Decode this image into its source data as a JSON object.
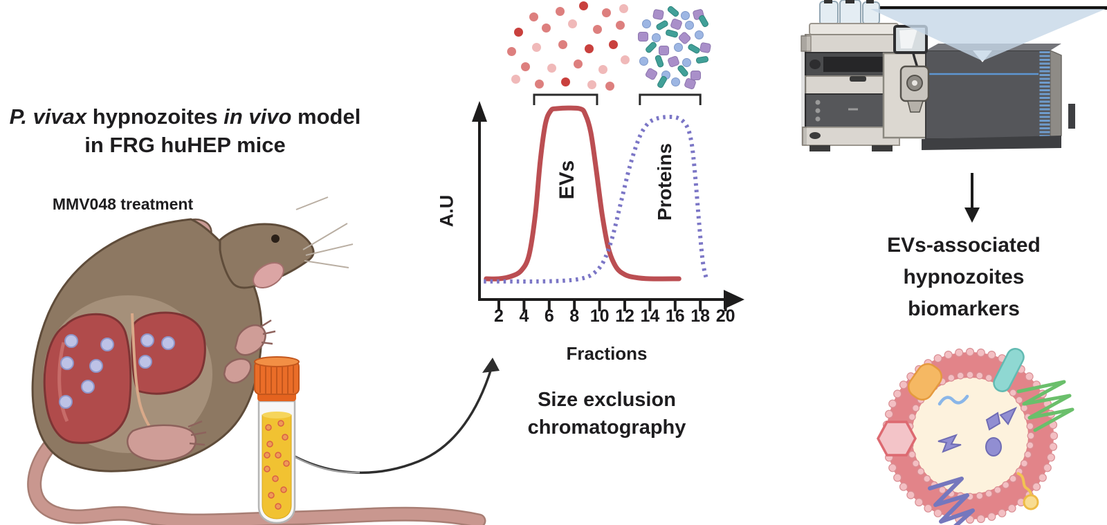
{
  "left": {
    "title_parts": [
      {
        "text": "P. vivax",
        "italic": true
      },
      {
        "text": " hypnozoites ",
        "italic": false
      },
      {
        "text": "in vivo",
        "italic": true
      },
      {
        "text": " model",
        "italic": false
      }
    ],
    "title_line2": "in FRG huHEP mice",
    "treatment_label": "MMV048 treatment"
  },
  "middle": {
    "caption_lines": [
      "Size exclusion",
      "chromatography"
    ]
  },
  "right": {
    "result_lines": [
      "EVs-associated",
      "hypnozoites",
      "biomarkers"
    ]
  },
  "chart_data": {
    "type": "line",
    "title": "Size exclusion chromatography",
    "xlabel": "Fractions",
    "ylabel": "A.U",
    "x_ticks": [
      2,
      4,
      6,
      8,
      10,
      12,
      14,
      16,
      18,
      20
    ],
    "xlim": [
      0,
      21
    ],
    "grid": false,
    "legend_position": "labels rotated inside each peak",
    "series": [
      {
        "name": "EVs",
        "line_style": "solid",
        "color": "#bb4e52",
        "peak_fractions": [
          6,
          10
        ],
        "points": [
          [
            1.0,
            0.0
          ],
          [
            2,
            0.0
          ],
          [
            3,
            0.015
          ],
          [
            3.8,
            0.05
          ],
          [
            4.4,
            0.14
          ],
          [
            4.9,
            0.38
          ],
          [
            5.3,
            0.7
          ],
          [
            5.7,
            0.91
          ],
          [
            6.1,
            0.985
          ],
          [
            6.6,
            1.0
          ],
          [
            8.4,
            1.0
          ],
          [
            8.9,
            0.96
          ],
          [
            9.3,
            0.86
          ],
          [
            9.7,
            0.66
          ],
          [
            10.2,
            0.38
          ],
          [
            10.7,
            0.18
          ],
          [
            11.3,
            0.07
          ],
          [
            12.0,
            0.025
          ],
          [
            12.8,
            0.008
          ],
          [
            14,
            0.0
          ],
          [
            16.3,
            0.0
          ]
        ]
      },
      {
        "name": "Proteins",
        "line_style": "dotted",
        "color": "#7b76c6",
        "peak_fractions": [
          13,
          18
        ],
        "points": [
          [
            0.8,
            -0.016
          ],
          [
            3,
            -0.016
          ],
          [
            5,
            -0.016
          ],
          [
            7,
            -0.012
          ],
          [
            8.5,
            0.0
          ],
          [
            9.5,
            0.03
          ],
          [
            10.3,
            0.1
          ],
          [
            11.0,
            0.24
          ],
          [
            11.7,
            0.45
          ],
          [
            12.4,
            0.66
          ],
          [
            13.1,
            0.82
          ],
          [
            13.7,
            0.9
          ],
          [
            14.3,
            0.935
          ],
          [
            15.2,
            0.95
          ],
          [
            16.2,
            0.945
          ],
          [
            16.9,
            0.9
          ],
          [
            17.3,
            0.8
          ],
          [
            17.6,
            0.6
          ],
          [
            17.9,
            0.33
          ],
          [
            18.2,
            0.1
          ],
          [
            18.5,
            -0.005
          ]
        ]
      }
    ],
    "annotations": [
      {
        "label": "EVs",
        "bracket_fractions": [
          4.8,
          9.8
        ]
      },
      {
        "label": "Proteins",
        "bracket_fractions": [
          13.2,
          18.0
        ]
      }
    ]
  },
  "clusters": {
    "ev_dot_colors": [
      "#f0b9b9",
      "#dd7f7e",
      "#c9403d"
    ],
    "ev_dots": [
      [
        40,
        18,
        1
      ],
      [
        78,
        10,
        1
      ],
      [
        112,
        2,
        2
      ],
      [
        145,
        12,
        1
      ],
      [
        170,
        6,
        0
      ],
      [
        18,
        40,
        2
      ],
      [
        58,
        34,
        1
      ],
      [
        96,
        28,
        0
      ],
      [
        132,
        36,
        1
      ],
      [
        165,
        30,
        1
      ],
      [
        8,
        68,
        1
      ],
      [
        44,
        62,
        0
      ],
      [
        82,
        58,
        1
      ],
      [
        120,
        64,
        2
      ],
      [
        155,
        58,
        2
      ],
      [
        28,
        90,
        1
      ],
      [
        66,
        92,
        0
      ],
      [
        104,
        86,
        1
      ],
      [
        140,
        94,
        0
      ],
      [
        172,
        80,
        0
      ],
      [
        48,
        115,
        1
      ],
      [
        86,
        112,
        2
      ],
      [
        124,
        116,
        0
      ],
      [
        14,
        108,
        0
      ],
      [
        150,
        118,
        1
      ]
    ],
    "protein_bit_types": [
      "blue-globule",
      "purple-protein",
      "teal-peptide"
    ],
    "protein_bits": [
      [
        24,
        2,
        1,
        10
      ],
      [
        44,
        0,
        2,
        40
      ],
      [
        64,
        4,
        0,
        0
      ],
      [
        82,
        2,
        1,
        -15
      ],
      [
        8,
        16,
        0,
        0
      ],
      [
        28,
        20,
        2,
        -30
      ],
      [
        50,
        16,
        1,
        20
      ],
      [
        70,
        18,
        0,
        0
      ],
      [
        88,
        14,
        2,
        60
      ],
      [
        2,
        34,
        1,
        0
      ],
      [
        22,
        36,
        0,
        0
      ],
      [
        42,
        32,
        2,
        15
      ],
      [
        62,
        36,
        1,
        45
      ],
      [
        84,
        32,
        0,
        0
      ],
      [
        12,
        52,
        2,
        -45
      ],
      [
        32,
        54,
        1,
        0
      ],
      [
        54,
        50,
        0,
        0
      ],
      [
        74,
        54,
        2,
        30
      ],
      [
        92,
        50,
        1,
        10
      ],
      [
        4,
        70,
        0,
        0
      ],
      [
        24,
        72,
        2,
        70
      ],
      [
        46,
        70,
        1,
        -20
      ],
      [
        66,
        72,
        0,
        0
      ],
      [
        86,
        70,
        2,
        -10
      ],
      [
        14,
        88,
        1,
        30
      ],
      [
        36,
        90,
        0,
        0
      ],
      [
        58,
        86,
        2,
        50
      ],
      [
        78,
        90,
        1,
        0
      ],
      [
        28,
        102,
        2,
        -60
      ],
      [
        50,
        100,
        0,
        0
      ],
      [
        70,
        102,
        1,
        20
      ]
    ]
  },
  "colors": {
    "text": "#1e1d1f",
    "axis": "#1d1c1c",
    "ev_curve": "#bb4e52",
    "protein_curve": "#7b76c6",
    "mouse_body": "#8d7862",
    "liver": "#b04b4b",
    "hypnozoite_dot": "#bdc2e6",
    "tube_cap": "#ea6d28",
    "plasma": "#f1c232",
    "beam": "#c5d7e7",
    "vesicle_membrane": "#e28489",
    "vesicle_lumen": "#fdf2dd"
  }
}
